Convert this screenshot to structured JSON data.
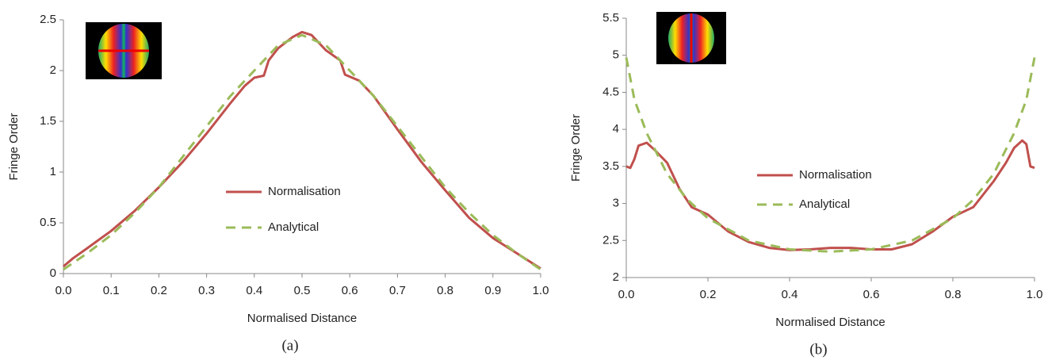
{
  "chart_data": [
    {
      "type": "line",
      "caption": "(a)",
      "x_label": "Normalised Distance",
      "y_label": "Fringe Order",
      "xlim": [
        0,
        1
      ],
      "ylim": [
        0,
        2.5
      ],
      "xticks": [
        {
          "value": 0,
          "label": "0.0"
        },
        0.1,
        0.2,
        0.3,
        0.4,
        0.5,
        0.6,
        0.7,
        0.8,
        0.9,
        {
          "value": 1,
          "label": "1.0"
        }
      ],
      "yticks": [
        0,
        0.5,
        1,
        1.5,
        2,
        2.5
      ],
      "legend": "center",
      "series": [
        {
          "name": "Normalisation",
          "color": "#c0504d",
          "dash": false,
          "x": [
            0,
            0.02,
            0.05,
            0.1,
            0.15,
            0.2,
            0.25,
            0.3,
            0.35,
            0.38,
            0.4,
            0.42,
            0.43,
            0.45,
            0.48,
            0.5,
            0.52,
            0.55,
            0.58,
            0.59,
            0.62,
            0.65,
            0.7,
            0.75,
            0.8,
            0.85,
            0.9,
            0.95,
            1
          ],
          "values": [
            0.07,
            0.15,
            0.25,
            0.42,
            0.62,
            0.85,
            1.1,
            1.38,
            1.68,
            1.85,
            1.93,
            1.95,
            2.1,
            2.22,
            2.33,
            2.38,
            2.35,
            2.2,
            2.1,
            1.96,
            1.9,
            1.75,
            1.42,
            1.1,
            0.82,
            0.55,
            0.35,
            0.2,
            0.05
          ]
        },
        {
          "name": "Analytical",
          "color": "#9bbb59",
          "dash": true,
          "x": [
            0,
            0.05,
            0.1,
            0.15,
            0.2,
            0.25,
            0.3,
            0.35,
            0.4,
            0.45,
            0.5,
            0.55,
            0.6,
            0.65,
            0.7,
            0.75,
            0.8,
            0.85,
            0.9,
            0.95,
            1
          ],
          "values": [
            0.04,
            0.2,
            0.38,
            0.6,
            0.85,
            1.15,
            1.45,
            1.75,
            2.0,
            2.25,
            2.35,
            2.25,
            2.0,
            1.75,
            1.45,
            1.15,
            0.85,
            0.6,
            0.38,
            0.2,
            0.04
          ]
        }
      ]
    },
    {
      "type": "line",
      "caption": "(b)",
      "x_label": "Normalised Distance",
      "y_label": "Fringe Order",
      "xlim": [
        0,
        1
      ],
      "ylim": [
        2,
        5.5
      ],
      "xticks": [
        {
          "value": 0,
          "label": "0.0"
        },
        0.2,
        0.4,
        0.6,
        0.8,
        {
          "value": 1,
          "label": "1.0"
        }
      ],
      "yticks": [
        2,
        2.5,
        3,
        3.5,
        4,
        4.5,
        5,
        5.5
      ],
      "legend": "center",
      "series": [
        {
          "name": "Normalisation",
          "color": "#c0504d",
          "dash": false,
          "x": [
            0,
            0.01,
            0.02,
            0.03,
            0.05,
            0.07,
            0.1,
            0.13,
            0.16,
            0.2,
            0.25,
            0.3,
            0.35,
            0.4,
            0.45,
            0.5,
            0.55,
            0.6,
            0.65,
            0.7,
            0.75,
            0.8,
            0.85,
            0.9,
            0.93,
            0.95,
            0.97,
            0.98,
            0.99,
            1
          ],
          "values": [
            3.5,
            3.48,
            3.6,
            3.78,
            3.82,
            3.72,
            3.55,
            3.2,
            2.95,
            2.85,
            2.62,
            2.48,
            2.4,
            2.37,
            2.38,
            2.4,
            2.4,
            2.38,
            2.38,
            2.45,
            2.62,
            2.82,
            2.95,
            3.3,
            3.55,
            3.75,
            3.85,
            3.8,
            3.5,
            3.48
          ]
        },
        {
          "name": "Analytical",
          "color": "#9bbb59",
          "dash": true,
          "x": [
            0,
            0.02,
            0.05,
            0.1,
            0.15,
            0.2,
            0.3,
            0.4,
            0.5,
            0.6,
            0.7,
            0.8,
            0.85,
            0.9,
            0.95,
            0.98,
            1
          ],
          "values": [
            4.97,
            4.4,
            3.95,
            3.4,
            3.05,
            2.8,
            2.5,
            2.38,
            2.35,
            2.38,
            2.5,
            2.8,
            3.05,
            3.4,
            3.95,
            4.4,
            4.97
          ]
        }
      ]
    }
  ]
}
